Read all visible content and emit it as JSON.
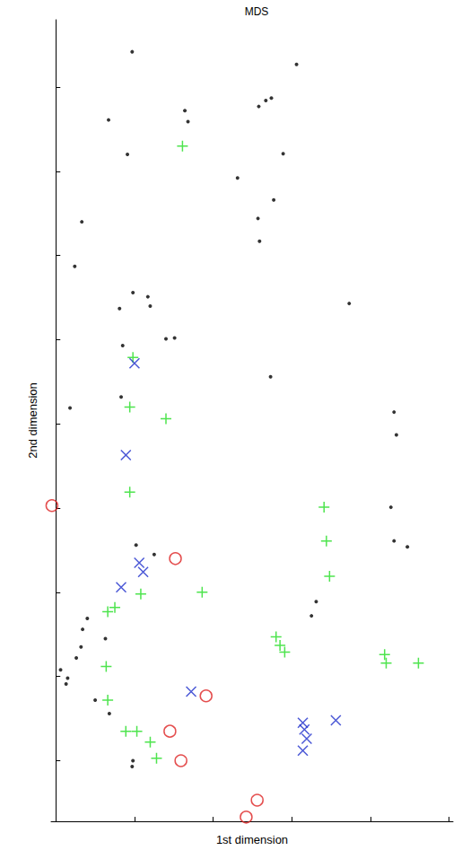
{
  "chart_data": {
    "type": "scatter",
    "title": "MDS",
    "x_label": "1st dimension",
    "y_label": "2nd dimension",
    "xlim": [
      -0.06,
      5.05
    ],
    "xticks": [
      0,
      1,
      2,
      3,
      4,
      5
    ],
    "ylim": [
      0.28,
      9.8
    ],
    "yticks": [
      1,
      2,
      3,
      4,
      5,
      6,
      7,
      8,
      9
    ],
    "tick_labels": false,
    "grid": false,
    "series": [
      {
        "color": "#000000",
        "marker": "dot",
        "values": [
          [
            0.97,
            9.42
          ],
          [
            3.06,
            9.27
          ],
          [
            0.67,
            8.61
          ],
          [
            1.64,
            8.72
          ],
          [
            1.68,
            8.59
          ],
          [
            2.58,
            8.77
          ],
          [
            2.67,
            8.84
          ],
          [
            2.74,
            8.87
          ],
          [
            0.91,
            8.2
          ],
          [
            2.89,
            8.21
          ],
          [
            2.31,
            7.92
          ],
          [
            2.77,
            7.66
          ],
          [
            0.33,
            7.4
          ],
          [
            2.57,
            7.44
          ],
          [
            2.59,
            7.17
          ],
          [
            0.24,
            6.87
          ],
          [
            0.98,
            6.56
          ],
          [
            1.17,
            6.51
          ],
          [
            1.2,
            6.4
          ],
          [
            0.81,
            6.37
          ],
          [
            1.4,
            6.01
          ],
          [
            1.51,
            6.02
          ],
          [
            3.73,
            6.43
          ],
          [
            0.85,
            5.93
          ],
          [
            0.83,
            5.32
          ],
          [
            0.18,
            5.19
          ],
          [
            2.73,
            5.56
          ],
          [
            4.3,
            5.14
          ],
          [
            4.33,
            4.87
          ],
          [
            4.26,
            4.01
          ],
          [
            4.47,
            3.54
          ],
          [
            1.02,
            3.56
          ],
          [
            1.25,
            3.45
          ],
          [
            3.31,
            2.89
          ],
          [
            3.25,
            2.72
          ],
          [
            0.4,
            2.69
          ],
          [
            0.34,
            2.56
          ],
          [
            0.32,
            2.35
          ],
          [
            0.26,
            2.22
          ],
          [
            0.15,
            1.98
          ],
          [
            0.13,
            1.91
          ],
          [
            0.06,
            2.08
          ],
          [
            0.63,
            2.45
          ],
          [
            0.5,
            1.72
          ],
          [
            0.68,
            1.56
          ],
          [
            0.98,
            1.0
          ],
          [
            0.97,
            0.93
          ],
          [
            4.3,
            3.61
          ]
        ]
      },
      {
        "color": "#22dd22",
        "marker": "plus",
        "values": [
          [
            1.61,
            8.3
          ],
          [
            0.98,
            5.79
          ],
          [
            0.94,
            5.2
          ],
          [
            1.4,
            5.06
          ],
          [
            0.94,
            4.19
          ],
          [
            3.41,
            4.01
          ],
          [
            3.48,
            3.19
          ],
          [
            1.86,
            3.0
          ],
          [
            1.08,
            2.98
          ],
          [
            0.66,
            2.77
          ],
          [
            0.75,
            2.82
          ],
          [
            3.44,
            3.61
          ],
          [
            2.8,
            2.47
          ],
          [
            2.85,
            2.37
          ],
          [
            2.91,
            2.29
          ],
          [
            4.18,
            2.26
          ],
          [
            4.2,
            2.16
          ],
          [
            4.61,
            2.16
          ],
          [
            1.03,
            1.35
          ],
          [
            1.2,
            1.22
          ],
          [
            1.28,
            1.03
          ],
          [
            0.89,
            1.35
          ],
          [
            0.66,
            1.72
          ],
          [
            0.64,
            2.12
          ]
        ]
      },
      {
        "color": "#1f2fcc",
        "marker": "x",
        "values": [
          [
            1.0,
            5.72
          ],
          [
            0.89,
            4.63
          ],
          [
            1.06,
            3.35
          ],
          [
            1.11,
            3.24
          ],
          [
            0.83,
            3.06
          ],
          [
            1.72,
            1.82
          ],
          [
            3.14,
            1.45
          ],
          [
            3.16,
            1.37
          ],
          [
            3.56,
            1.48
          ],
          [
            3.19,
            1.26
          ],
          [
            3.14,
            1.12
          ]
        ]
      },
      {
        "color": "#dd2222",
        "marker": "circle",
        "values": [
          [
            -0.05,
            4.03
          ],
          [
            1.52,
            3.4
          ],
          [
            1.91,
            1.77
          ],
          [
            1.45,
            1.35
          ],
          [
            1.59,
            1.0
          ],
          [
            2.56,
            0.53
          ],
          [
            2.42,
            0.33
          ]
        ]
      }
    ]
  }
}
